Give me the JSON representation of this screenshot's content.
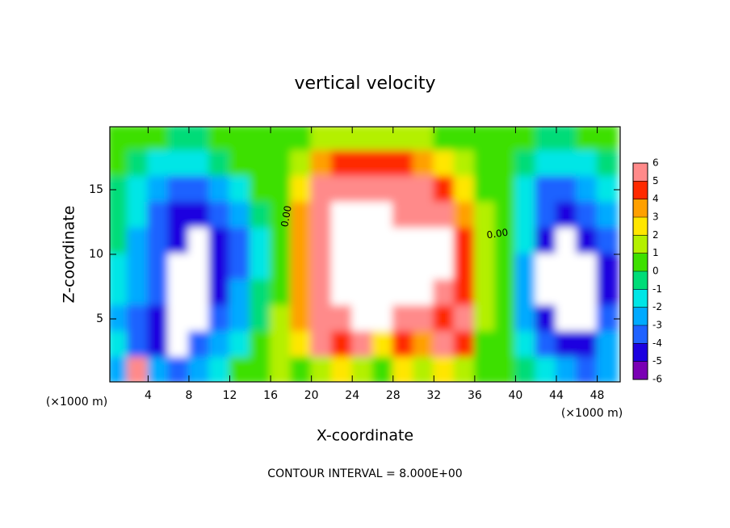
{
  "chart_data": {
    "type": "contour",
    "title": "vertical velocity",
    "xlabel": "X-coordinate",
    "ylabel": "Z-coordinate",
    "x_unit_labels": [
      "(×1000 m)",
      "(×1000 m)"
    ],
    "footer": "CONTOUR INTERVAL = 8.000E+00",
    "contour_labels": [
      "0.00",
      "0.00"
    ],
    "x": [
      1,
      3,
      5,
      7,
      9,
      11,
      13,
      15,
      17,
      19,
      21,
      23,
      25,
      27,
      29,
      31,
      33,
      35,
      37,
      39,
      41,
      43,
      45,
      47,
      49
    ],
    "z": [
      19,
      17,
      15,
      13,
      11,
      9,
      7,
      5,
      3,
      1
    ],
    "values": [
      [
        0,
        0,
        0,
        -1,
        -1,
        0,
        0,
        0,
        0,
        0,
        1,
        1,
        1,
        1,
        1,
        1,
        0,
        0,
        0,
        0,
        0,
        -1,
        -1,
        0,
        0
      ],
      [
        0,
        -1,
        -2,
        -2,
        -2,
        -1,
        0,
        0,
        0,
        1,
        3,
        4,
        4,
        4,
        4,
        3,
        2,
        1,
        0,
        0,
        -1,
        -2,
        -2,
        -2,
        -1
      ],
      [
        -1,
        -2,
        -3,
        -4,
        -4,
        -3,
        -2,
        0,
        0,
        2,
        5,
        5,
        5,
        5,
        5,
        5,
        4,
        2,
        0,
        0,
        -2,
        -4,
        -4,
        -3,
        -2
      ],
      [
        -1,
        -2,
        -4,
        -5,
        -5,
        -4,
        -3,
        -1,
        0,
        3,
        5,
        8,
        8,
        8,
        5,
        5,
        5,
        3,
        1,
        0,
        -2,
        -4,
        -5,
        -4,
        -3
      ],
      [
        -1,
        -3,
        -4,
        -5,
        -8,
        -5,
        -4,
        -2,
        0,
        3,
        5,
        8,
        8,
        8,
        8,
        8,
        8,
        4,
        1,
        0,
        -2,
        -5,
        -8,
        -5,
        -4
      ],
      [
        -2,
        -3,
        -4,
        -8,
        -8,
        -5,
        -4,
        -2,
        0,
        3,
        5,
        8,
        8,
        8,
        8,
        8,
        8,
        4,
        1,
        0,
        -3,
        -8,
        -8,
        -8,
        -5
      ],
      [
        -2,
        -3,
        -4,
        -8,
        -8,
        -5,
        -3,
        -1,
        0,
        3,
        5,
        8,
        8,
        8,
        8,
        8,
        5,
        4,
        1,
        0,
        -3,
        -8,
        -8,
        -8,
        -5
      ],
      [
        -3,
        -4,
        -5,
        -8,
        -8,
        -4,
        -3,
        -1,
        1,
        3,
        5,
        5,
        8,
        8,
        5,
        5,
        4,
        5,
        1,
        0,
        -3,
        -5,
        -8,
        -8,
        -4
      ],
      [
        -2,
        -4,
        -5,
        -8,
        -4,
        -3,
        -2,
        0,
        1,
        2,
        5,
        4,
        5,
        2,
        4,
        3,
        5,
        4,
        0,
        0,
        -2,
        -4,
        -5,
        -5,
        -3
      ],
      [
        -3,
        5,
        -3,
        -4,
        -3,
        -2,
        0,
        0,
        1,
        0,
        1,
        2,
        1,
        0,
        2,
        1,
        2,
        1,
        0,
        0,
        -1,
        -2,
        -3,
        -4,
        -3
      ]
    ],
    "xlim": [
      0.25,
      50.25
    ],
    "ylim": [
      0.125,
      19.875
    ],
    "xticks": [
      4,
      8,
      12,
      16,
      20,
      24,
      28,
      32,
      36,
      40,
      44,
      48
    ],
    "yticks": [
      5,
      10,
      15
    ],
    "colorbar_ticks": [
      -6,
      -5,
      -4,
      -3,
      -2,
      -1,
      0,
      1,
      2,
      3,
      4,
      5,
      6
    ],
    "colors": [
      "#7a00b4",
      "#1c00e0",
      "#1f62ff",
      "#00aaff",
      "#00e6e6",
      "#00dc78",
      "#3ee000",
      "#b4f000",
      "#ffe600",
      "#ffa000",
      "#ff2a00",
      "#ff8a8a"
    ],
    "out_of_range_color": "#ffffff"
  }
}
